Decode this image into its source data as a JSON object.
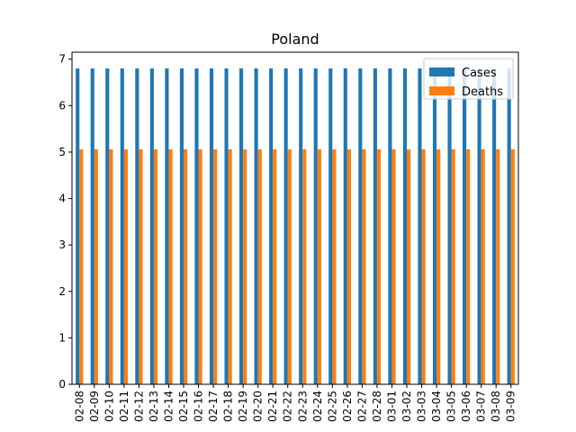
{
  "chart_data": {
    "type": "bar",
    "title": "Poland",
    "xlabel": "",
    "ylabel": "",
    "categories": [
      "02-08",
      "02-09",
      "02-10",
      "02-11",
      "02-12",
      "02-13",
      "02-14",
      "02-15",
      "02-16",
      "02-17",
      "02-18",
      "02-19",
      "02-20",
      "02-21",
      "02-22",
      "02-23",
      "02-24",
      "02-25",
      "02-26",
      "02-27",
      "02-28",
      "03-01",
      "03-02",
      "03-03",
      "03-04",
      "03-05",
      "03-06",
      "03-07",
      "03-08",
      "03-09"
    ],
    "series": [
      {
        "name": "Cases",
        "color": "#1f77b4",
        "values": [
          6.8,
          6.8,
          6.8,
          6.8,
          6.8,
          6.8,
          6.8,
          6.8,
          6.8,
          6.8,
          6.8,
          6.8,
          6.8,
          6.8,
          6.8,
          6.8,
          6.8,
          6.8,
          6.8,
          6.8,
          6.8,
          6.8,
          6.8,
          6.8,
          6.8,
          6.8,
          6.8,
          6.8,
          6.8,
          6.8
        ]
      },
      {
        "name": "Deaths",
        "color": "#ff7f0e",
        "values": [
          5.06,
          5.06,
          5.06,
          5.06,
          5.06,
          5.06,
          5.06,
          5.06,
          5.06,
          5.06,
          5.06,
          5.06,
          5.06,
          5.06,
          5.06,
          5.06,
          5.06,
          5.06,
          5.06,
          5.06,
          5.06,
          5.06,
          5.06,
          5.06,
          5.06,
          5.06,
          5.06,
          5.06,
          5.06,
          5.06
        ]
      }
    ],
    "ylim": [
      0,
      7.15
    ],
    "yticks": [
      0,
      1,
      2,
      3,
      4,
      5,
      6,
      7
    ],
    "grid": false,
    "legend_position": "top-right"
  }
}
